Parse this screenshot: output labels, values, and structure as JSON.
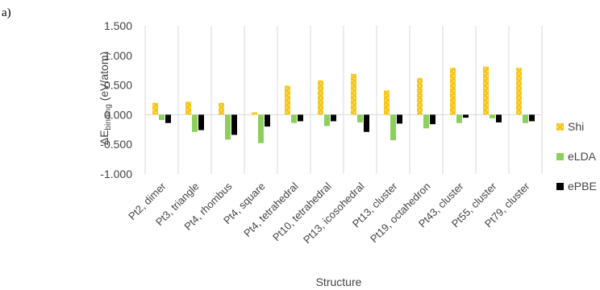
{
  "panel_label": "a)",
  "chart_data": {
    "type": "bar",
    "xlabel": "Structure",
    "ylabel_main": "ΔE",
    "ylabel_sub": "binding",
    "ylabel_unit": " (eV/atom)",
    "ylim": [
      -1.0,
      1.5
    ],
    "yticks": [
      1.5,
      1.0,
      0.5,
      0.0,
      -0.5,
      -1.0
    ],
    "ytick_labels": [
      "1.500",
      "1.000",
      "0.500",
      "0.000",
      "-0.500",
      "-1.000"
    ],
    "grid": "vertical separators between categories",
    "legend_position": "right",
    "categories": [
      "Pt2, dimer",
      "Pt3, triangle",
      "Pt4, rhombus",
      "Pt4, square",
      "Pt4, tetrahedral",
      "Pt10, tetrahedral",
      "Pt13, icosohedral",
      "Pt13, cluster",
      "Pt19, octahedron",
      "Pt43, cluster",
      "Pt55, cluster",
      "Pt79, cluster"
    ],
    "series": [
      {
        "name": "Shi",
        "color": "#F5C518",
        "pattern": "dotted",
        "values": [
          0.2,
          0.22,
          0.2,
          0.04,
          0.49,
          0.58,
          0.69,
          0.41,
          0.62,
          0.79,
          0.81,
          0.79
        ]
      },
      {
        "name": "eLDA",
        "color": "#8DCF5B",
        "pattern": "solid",
        "values": [
          -0.09,
          -0.29,
          -0.42,
          -0.48,
          -0.14,
          -0.19,
          -0.13,
          -0.43,
          -0.23,
          -0.14,
          -0.06,
          -0.14
        ]
      },
      {
        "name": "ePBE",
        "color": "#000000",
        "pattern": "solid",
        "values": [
          -0.14,
          -0.26,
          -0.34,
          -0.2,
          -0.11,
          -0.11,
          -0.29,
          -0.15,
          -0.16,
          -0.05,
          -0.13,
          -0.11
        ]
      }
    ]
  }
}
